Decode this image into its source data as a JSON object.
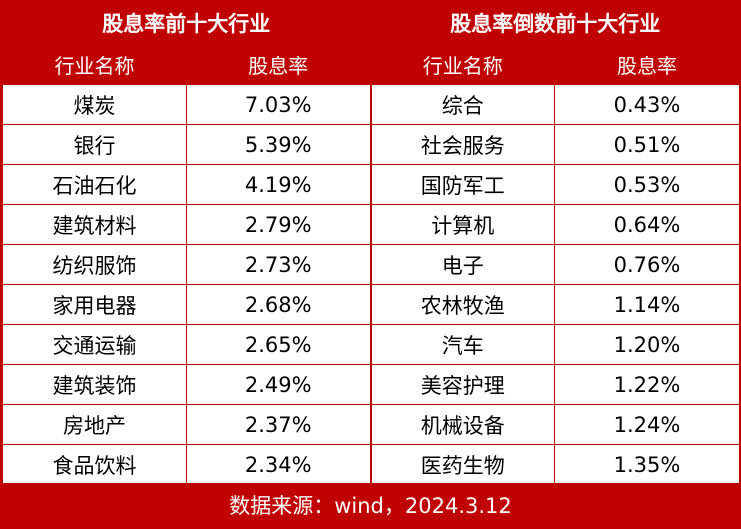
{
  "top": {
    "title": "股息率前十大行业",
    "col_industry": "行业名称",
    "col_yield": "股息率",
    "rows": [
      {
        "name": "煤炭",
        "yield": "7.03%"
      },
      {
        "name": "银行",
        "yield": "5.39%"
      },
      {
        "name": "石油石化",
        "yield": "4.19%"
      },
      {
        "name": "建筑材料",
        "yield": "2.79%"
      },
      {
        "name": "纺织服饰",
        "yield": "2.73%"
      },
      {
        "name": "家用电器",
        "yield": "2.68%"
      },
      {
        "name": "交通运输",
        "yield": "2.65%"
      },
      {
        "name": "建筑装饰",
        "yield": "2.49%"
      },
      {
        "name": "房地产",
        "yield": "2.37%"
      },
      {
        "name": "食品饮料",
        "yield": "2.34%"
      }
    ]
  },
  "bottom": {
    "title": "股息率倒数前十大行业",
    "col_industry": "行业名称",
    "col_yield": "股息率",
    "rows": [
      {
        "name": "综合",
        "yield": "0.43%"
      },
      {
        "name": "社会服务",
        "yield": "0.51%"
      },
      {
        "name": "国防军工",
        "yield": "0.53%"
      },
      {
        "name": "计算机",
        "yield": "0.64%"
      },
      {
        "name": "电子",
        "yield": "0.76%"
      },
      {
        "name": "农林牧渔",
        "yield": "1.14%"
      },
      {
        "name": "汽车",
        "yield": "1.20%"
      },
      {
        "name": "美容护理",
        "yield": "1.22%"
      },
      {
        "name": "机械设备",
        "yield": "1.24%"
      },
      {
        "name": "医药生物",
        "yield": "1.35%"
      }
    ]
  },
  "footer": "数据来源：wind，2024.3.12",
  "colors": {
    "accent": "#c00000",
    "text": "#000000",
    "header_text": "#ffffff"
  }
}
